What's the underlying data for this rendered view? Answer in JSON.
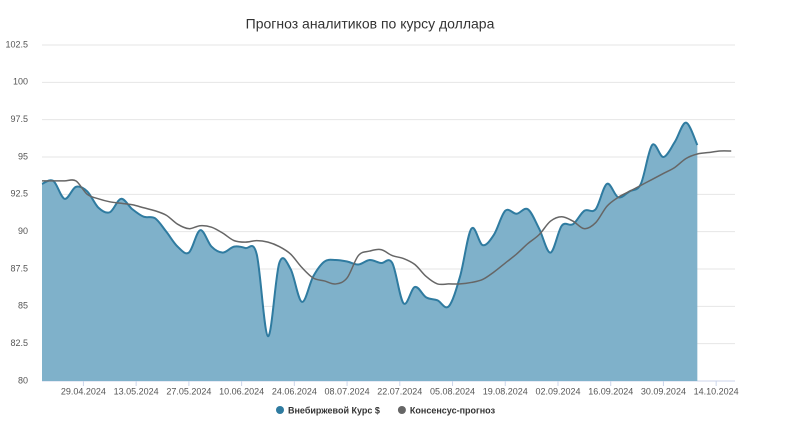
{
  "chart_data": {
    "type": "area_line",
    "title": "Прогноз аналитиков по курсу доллара",
    "x": [
      "18.04.2024",
      "21.04.2024",
      "24.04.2024",
      "27.04.2024",
      "30.04.2024",
      "03.05.2024",
      "06.05.2024",
      "09.05.2024",
      "12.05.2024",
      "15.05.2024",
      "18.05.2024",
      "21.05.2024",
      "24.05.2024",
      "27.05.2024",
      "30.05.2024",
      "02.06.2024",
      "05.06.2024",
      "08.06.2024",
      "11.06.2024",
      "14.06.2024",
      "17.06.2024",
      "20.06.2024",
      "23.06.2024",
      "26.06.2024",
      "29.06.2024",
      "02.07.2024",
      "05.07.2024",
      "08.07.2024",
      "11.07.2024",
      "14.07.2024",
      "17.07.2024",
      "20.07.2024",
      "23.07.2024",
      "26.07.2024",
      "29.07.2024",
      "01.08.2024",
      "04.08.2024",
      "07.08.2024",
      "10.08.2024",
      "13.08.2024",
      "16.08.2024",
      "19.08.2024",
      "22.08.2024",
      "25.08.2024",
      "28.08.2024",
      "31.08.2024",
      "03.09.2024",
      "06.09.2024",
      "09.09.2024",
      "12.09.2024",
      "15.09.2024",
      "18.09.2024",
      "21.09.2024",
      "24.09.2024",
      "27.09.2024",
      "30.09.2024",
      "03.10.2024",
      "06.10.2024",
      "09.10.2024",
      "12.10.2024",
      "15.10.2024",
      "18.10.2024"
    ],
    "series": [
      {
        "name": "Внебиржевой Курс $",
        "color": "#2f7ba0",
        "fill": "#7fb1ca",
        "values": [
          93.2,
          93.4,
          92.2,
          93.0,
          92.7,
          91.6,
          91.3,
          92.2,
          91.5,
          91.0,
          90.9,
          90.0,
          89.0,
          88.6,
          90.1,
          89.0,
          88.6,
          89.0,
          88.9,
          88.5,
          83.0,
          87.9,
          87.5,
          85.3,
          87.0,
          88.0,
          88.1,
          88.0,
          87.8,
          88.1,
          87.9,
          87.9,
          85.2,
          86.3,
          85.6,
          85.4,
          85.0,
          87.0,
          90.2,
          89.1,
          89.8,
          91.4,
          91.2,
          91.5,
          90.2,
          88.6,
          90.4,
          90.5,
          91.4,
          91.5,
          93.2,
          92.3,
          92.7,
          93.2,
          95.8,
          95.0,
          96.0,
          97.3,
          95.8,
          null,
          null,
          null
        ]
      },
      {
        "name": "Консенсус-прогноз",
        "color": "#666666",
        "values": [
          93.4,
          93.4,
          93.4,
          93.4,
          92.5,
          92.2,
          92.0,
          91.9,
          91.8,
          91.6,
          91.4,
          91.1,
          90.5,
          90.2,
          90.4,
          90.3,
          89.9,
          89.4,
          89.3,
          89.4,
          89.3,
          89.0,
          88.5,
          87.6,
          86.9,
          86.7,
          86.5,
          86.9,
          88.4,
          88.7,
          88.8,
          88.4,
          88.2,
          87.8,
          87.0,
          86.5,
          86.5,
          86.5,
          86.6,
          86.8,
          87.3,
          87.9,
          88.5,
          89.2,
          89.8,
          90.7,
          91.0,
          90.7,
          90.2,
          90.6,
          91.7,
          92.3,
          92.7,
          93.1,
          93.5,
          93.9,
          94.3,
          94.9,
          95.2,
          95.3,
          95.4,
          95.4
        ]
      }
    ],
    "xlim": [
      "18.04.2024",
      "19.10.2024"
    ],
    "xticks": [
      "29.04.2024",
      "13.05.2024",
      "27.05.2024",
      "10.06.2024",
      "24.06.2024",
      "08.07.2024",
      "22.07.2024",
      "05.08.2024",
      "19.08.2024",
      "02.09.2024",
      "16.09.2024",
      "30.09.2024",
      "14.10.2024"
    ],
    "ylim": [
      80,
      102.5
    ],
    "yticks": [
      80,
      82.5,
      85,
      87.5,
      90,
      92.5,
      95,
      97.5,
      100,
      102.5
    ],
    "grid": true
  }
}
